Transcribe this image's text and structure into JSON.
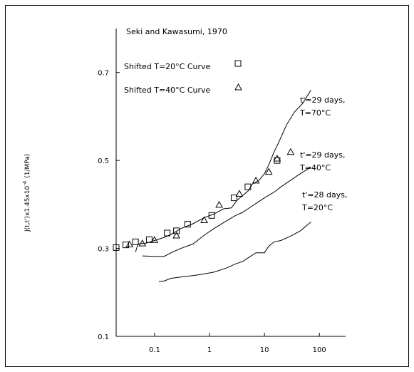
{
  "chart_data": {
    "type": "line",
    "title": "Seki and Kawasumi, 1970",
    "xlabel": "",
    "ylabel": "J(t,t')x1.45x10^-4 (1/MPa)",
    "ylabel_main": "J(t,t')x1.45x10",
    "ylabel_exp": "-4",
    "ylabel_unit": "(1/MPa)",
    "x_scale": "log",
    "xlim": [
      0.02,
      300
    ],
    "ylim": [
      0.1,
      0.8
    ],
    "x_ticks": [
      {
        "value": 0.1,
        "label": "0.1"
      },
      {
        "value": 1,
        "label": "1"
      },
      {
        "value": 10,
        "label": "10"
      },
      {
        "value": 100,
        "label": "100"
      }
    ],
    "y_ticks": [
      {
        "value": 0.1,
        "label": "0.1"
      },
      {
        "value": 0.3,
        "label": "0.3"
      },
      {
        "value": 0.5,
        "label": "0.5"
      },
      {
        "value": 0.7,
        "label": "0.7"
      }
    ],
    "grid": false,
    "legend_position": "top-left",
    "curve_labels": [
      {
        "series": "70",
        "line1": "t'=29 days,",
        "line2": "T=70°C"
      },
      {
        "series": "40",
        "line1": "t'=29 days,",
        "line2": "T=40°C"
      },
      {
        "series": "20",
        "line1": "t'=28 days,",
        "line2": "T=20°C"
      }
    ],
    "series": [
      {
        "id": "70",
        "kind": "line",
        "x": [
          0.045,
          0.05,
          0.07,
          0.1,
          0.15,
          0.2,
          0.3,
          0.5,
          0.8,
          1.2,
          1.8,
          2.5,
          3.2,
          4.0,
          5.0,
          6.0,
          8.0,
          10.0,
          12.0,
          15.0,
          18.0,
          25.0,
          35.0,
          50.0,
          70.0
        ],
        "y": [
          0.292,
          0.31,
          0.312,
          0.318,
          0.325,
          0.332,
          0.345,
          0.356,
          0.37,
          0.378,
          0.39,
          0.392,
          0.41,
          0.42,
          0.43,
          0.446,
          0.455,
          0.47,
          0.49,
          0.52,
          0.54,
          0.58,
          0.61,
          0.63,
          0.66
        ]
      },
      {
        "id": "40",
        "kind": "line",
        "x": [
          0.06,
          0.1,
          0.15,
          0.2,
          0.3,
          0.5,
          0.8,
          1.2,
          2.0,
          3.0,
          4.0,
          5.0,
          7.0,
          10.0,
          15.0,
          20.0,
          30.0,
          45.0,
          70.0
        ],
        "y": [
          0.283,
          0.282,
          0.282,
          0.29,
          0.3,
          0.31,
          0.33,
          0.345,
          0.362,
          0.375,
          0.382,
          0.39,
          0.402,
          0.415,
          0.428,
          0.44,
          0.455,
          0.47,
          0.485
        ]
      },
      {
        "id": "20",
        "kind": "line",
        "x": [
          0.12,
          0.15,
          0.2,
          0.3,
          0.5,
          0.8,
          1.2,
          2.0,
          3.0,
          4.0,
          5.0,
          7.0,
          10.0,
          12.0,
          15.0,
          20.0,
          30.0,
          45.0,
          70.0
        ],
        "y": [
          0.225,
          0.226,
          0.232,
          0.235,
          0.238,
          0.242,
          0.246,
          0.255,
          0.265,
          0.27,
          0.278,
          0.29,
          0.29,
          0.305,
          0.315,
          0.318,
          0.328,
          0.34,
          0.36
        ]
      },
      {
        "id": "sq",
        "name": "Shifted T=20°C Curve",
        "kind": "marker",
        "marker": "square",
        "x": [
          0.02,
          0.03,
          0.045,
          0.08,
          0.17,
          0.25,
          0.4,
          1.1,
          2.8,
          5.0,
          17.0
        ],
        "y": [
          0.302,
          0.308,
          0.315,
          0.32,
          0.335,
          0.34,
          0.355,
          0.375,
          0.415,
          0.44,
          0.5
        ]
      },
      {
        "id": "tri",
        "name": "Shifted T=40°C Curve",
        "kind": "marker",
        "marker": "triangle",
        "x": [
          0.035,
          0.06,
          0.1,
          0.25,
          0.8,
          1.5,
          3.5,
          7.0,
          12.0,
          17.0,
          30.0
        ],
        "y": [
          0.31,
          0.312,
          0.32,
          0.33,
          0.365,
          0.4,
          0.425,
          0.455,
          0.475,
          0.505,
          0.52
        ]
      }
    ]
  }
}
